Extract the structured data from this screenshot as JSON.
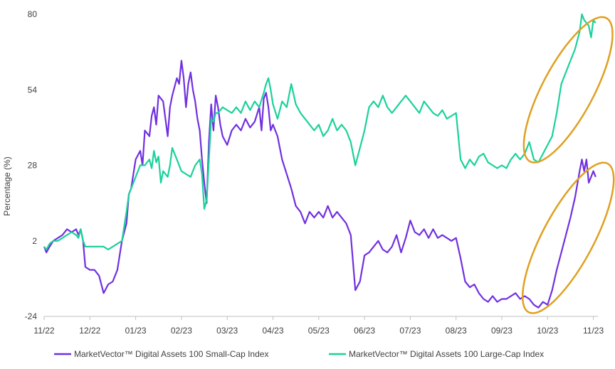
{
  "chart_data": {
    "type": "line",
    "title": "",
    "xlabel": "",
    "ylabel": "Percentage (%)",
    "ylim": [
      -24,
      80
    ],
    "yticks": [
      -24,
      2,
      28,
      54,
      80
    ],
    "xlim": [
      0,
      12.1
    ],
    "xticks": [
      {
        "x": 0,
        "label": "11/22"
      },
      {
        "x": 1,
        "label": "12/22"
      },
      {
        "x": 2,
        "label": "01/23"
      },
      {
        "x": 3,
        "label": "02/23"
      },
      {
        "x": 4,
        "label": "03/23"
      },
      {
        "x": 5,
        "label": "04/23"
      },
      {
        "x": 6,
        "label": "05/23"
      },
      {
        "x": 7,
        "label": "06/23"
      },
      {
        "x": 8,
        "label": "07/23"
      },
      {
        "x": 9,
        "label": "08/23"
      },
      {
        "x": 10,
        "label": "09/23"
      },
      {
        "x": 11,
        "label": "10/23"
      },
      {
        "x": 12,
        "label": "11/23"
      }
    ],
    "grid": false,
    "legend_position": "bottom",
    "series": [
      {
        "name": "MarketVector™ Digital Assets 100 Small-Cap Index",
        "color": "#7030E0",
        "points": [
          [
            0,
            0
          ],
          [
            0.05,
            -2
          ],
          [
            0.12,
            0
          ],
          [
            0.2,
            2
          ],
          [
            0.3,
            3
          ],
          [
            0.4,
            4
          ],
          [
            0.5,
            6
          ],
          [
            0.6,
            5
          ],
          [
            0.7,
            6
          ],
          [
            0.75,
            4
          ],
          [
            0.8,
            6
          ],
          [
            0.85,
            2
          ],
          [
            0.9,
            -7
          ],
          [
            1.0,
            -8
          ],
          [
            1.1,
            -8
          ],
          [
            1.2,
            -10
          ],
          [
            1.3,
            -16
          ],
          [
            1.4,
            -13
          ],
          [
            1.5,
            -12
          ],
          [
            1.6,
            -8
          ],
          [
            1.7,
            2
          ],
          [
            1.8,
            8
          ],
          [
            1.85,
            18
          ],
          [
            1.9,
            20
          ],
          [
            2.0,
            30
          ],
          [
            2.1,
            33
          ],
          [
            2.15,
            28
          ],
          [
            2.2,
            40
          ],
          [
            2.3,
            38
          ],
          [
            2.35,
            45
          ],
          [
            2.4,
            48
          ],
          [
            2.45,
            42
          ],
          [
            2.5,
            52
          ],
          [
            2.6,
            50
          ],
          [
            2.7,
            38
          ],
          [
            2.75,
            48
          ],
          [
            2.8,
            52
          ],
          [
            2.9,
            58
          ],
          [
            2.95,
            56
          ],
          [
            3.0,
            64
          ],
          [
            3.05,
            58
          ],
          [
            3.1,
            48
          ],
          [
            3.15,
            56
          ],
          [
            3.2,
            60
          ],
          [
            3.25,
            54
          ],
          [
            3.3,
            50
          ],
          [
            3.35,
            44
          ],
          [
            3.4,
            40
          ],
          [
            3.45,
            30
          ],
          [
            3.5,
            22
          ],
          [
            3.55,
            15
          ],
          [
            3.6,
            36
          ],
          [
            3.65,
            49
          ],
          [
            3.7,
            40
          ],
          [
            3.75,
            52
          ],
          [
            3.8,
            48
          ],
          [
            3.85,
            42
          ],
          [
            3.9,
            38
          ],
          [
            4.0,
            35
          ],
          [
            4.1,
            40
          ],
          [
            4.2,
            42
          ],
          [
            4.3,
            40
          ],
          [
            4.4,
            44
          ],
          [
            4.5,
            41
          ],
          [
            4.6,
            43
          ],
          [
            4.7,
            48
          ],
          [
            4.75,
            40
          ],
          [
            4.8,
            51
          ],
          [
            4.85,
            53
          ],
          [
            4.9,
            48
          ],
          [
            4.95,
            40
          ],
          [
            5.0,
            42
          ],
          [
            5.1,
            38
          ],
          [
            5.2,
            30
          ],
          [
            5.3,
            25
          ],
          [
            5.4,
            20
          ],
          [
            5.5,
            14
          ],
          [
            5.6,
            12
          ],
          [
            5.7,
            8
          ],
          [
            5.8,
            12
          ],
          [
            5.9,
            10
          ],
          [
            6.0,
            12
          ],
          [
            6.1,
            10
          ],
          [
            6.2,
            14
          ],
          [
            6.3,
            10
          ],
          [
            6.4,
            12
          ],
          [
            6.5,
            10
          ],
          [
            6.6,
            8
          ],
          [
            6.7,
            4
          ],
          [
            6.8,
            -15
          ],
          [
            6.9,
            -12
          ],
          [
            7.0,
            -3
          ],
          [
            7.1,
            -2
          ],
          [
            7.2,
            0
          ],
          [
            7.3,
            2
          ],
          [
            7.4,
            -1
          ],
          [
            7.5,
            -2
          ],
          [
            7.6,
            0
          ],
          [
            7.7,
            4
          ],
          [
            7.8,
            -2
          ],
          [
            7.9,
            3
          ],
          [
            8.0,
            9
          ],
          [
            8.1,
            5
          ],
          [
            8.2,
            4
          ],
          [
            8.3,
            6
          ],
          [
            8.4,
            3
          ],
          [
            8.5,
            6
          ],
          [
            8.6,
            3
          ],
          [
            8.7,
            4
          ],
          [
            8.8,
            3
          ],
          [
            8.9,
            2
          ],
          [
            9.0,
            3
          ],
          [
            9.1,
            -4
          ],
          [
            9.2,
            -12
          ],
          [
            9.3,
            -14
          ],
          [
            9.4,
            -13
          ],
          [
            9.5,
            -16
          ],
          [
            9.6,
            -18
          ],
          [
            9.7,
            -19
          ],
          [
            9.8,
            -17
          ],
          [
            9.9,
            -19
          ],
          [
            10.0,
            -18
          ],
          [
            10.1,
            -18
          ],
          [
            10.2,
            -17
          ],
          [
            10.3,
            -16
          ],
          [
            10.4,
            -18
          ],
          [
            10.5,
            -17
          ],
          [
            10.6,
            -18
          ],
          [
            10.7,
            -20
          ],
          [
            10.8,
            -21
          ],
          [
            10.9,
            -19
          ],
          [
            11.0,
            -20
          ],
          [
            11.1,
            -15
          ],
          [
            11.2,
            -8
          ],
          [
            11.3,
            -2
          ],
          [
            11.4,
            4
          ],
          [
            11.5,
            10
          ],
          [
            11.6,
            17
          ],
          [
            11.7,
            26
          ],
          [
            11.75,
            30
          ],
          [
            11.8,
            26
          ],
          [
            11.85,
            30
          ],
          [
            11.9,
            22
          ],
          [
            11.95,
            24
          ],
          [
            12.0,
            26
          ],
          [
            12.05,
            24
          ]
        ]
      },
      {
        "name": "MarketVector™ Digital Assets 100 Large-Cap Index",
        "color": "#1BD19A",
        "points": [
          [
            0,
            0
          ],
          [
            0.05,
            -1
          ],
          [
            0.12,
            1
          ],
          [
            0.2,
            2
          ],
          [
            0.3,
            2
          ],
          [
            0.4,
            3
          ],
          [
            0.5,
            4
          ],
          [
            0.6,
            5
          ],
          [
            0.7,
            4
          ],
          [
            0.75,
            3
          ],
          [
            0.8,
            6
          ],
          [
            0.85,
            2
          ],
          [
            0.9,
            0
          ],
          [
            1.0,
            0
          ],
          [
            1.1,
            0
          ],
          [
            1.2,
            0
          ],
          [
            1.3,
            0
          ],
          [
            1.4,
            -1
          ],
          [
            1.5,
            0
          ],
          [
            1.6,
            1
          ],
          [
            1.7,
            2
          ],
          [
            1.8,
            12
          ],
          [
            1.85,
            18
          ],
          [
            1.9,
            20
          ],
          [
            2.0,
            24
          ],
          [
            2.1,
            28
          ],
          [
            2.2,
            28
          ],
          [
            2.3,
            30
          ],
          [
            2.35,
            27
          ],
          [
            2.4,
            33
          ],
          [
            2.45,
            29
          ],
          [
            2.5,
            31
          ],
          [
            2.55,
            22
          ],
          [
            2.6,
            26
          ],
          [
            2.7,
            24
          ],
          [
            2.75,
            28
          ],
          [
            2.8,
            34
          ],
          [
            2.9,
            30
          ],
          [
            3.0,
            26
          ],
          [
            3.1,
            25
          ],
          [
            3.2,
            24
          ],
          [
            3.3,
            28
          ],
          [
            3.4,
            30
          ],
          [
            3.45,
            25
          ],
          [
            3.5,
            13
          ],
          [
            3.55,
            16
          ],
          [
            3.6,
            30
          ],
          [
            3.65,
            44
          ],
          [
            3.7,
            43
          ],
          [
            3.75,
            46
          ],
          [
            3.8,
            46
          ],
          [
            3.9,
            48
          ],
          [
            4.0,
            47
          ],
          [
            4.1,
            46
          ],
          [
            4.2,
            48
          ],
          [
            4.3,
            46
          ],
          [
            4.4,
            50
          ],
          [
            4.5,
            47
          ],
          [
            4.6,
            50
          ],
          [
            4.7,
            48
          ],
          [
            4.8,
            53
          ],
          [
            4.85,
            56
          ],
          [
            4.9,
            58
          ],
          [
            4.95,
            54
          ],
          [
            5.0,
            49
          ],
          [
            5.1,
            44
          ],
          [
            5.2,
            50
          ],
          [
            5.3,
            48
          ],
          [
            5.35,
            52
          ],
          [
            5.4,
            56
          ],
          [
            5.5,
            49
          ],
          [
            5.6,
            46
          ],
          [
            5.7,
            44
          ],
          [
            5.8,
            42
          ],
          [
            5.9,
            40
          ],
          [
            6.0,
            42
          ],
          [
            6.1,
            38
          ],
          [
            6.2,
            40
          ],
          [
            6.3,
            44
          ],
          [
            6.4,
            40
          ],
          [
            6.5,
            42
          ],
          [
            6.6,
            40
          ],
          [
            6.7,
            36
          ],
          [
            6.8,
            28
          ],
          [
            6.9,
            34
          ],
          [
            7.0,
            40
          ],
          [
            7.1,
            48
          ],
          [
            7.2,
            50
          ],
          [
            7.3,
            48
          ],
          [
            7.4,
            52
          ],
          [
            7.5,
            48
          ],
          [
            7.6,
            46
          ],
          [
            7.7,
            48
          ],
          [
            7.8,
            50
          ],
          [
            7.9,
            52
          ],
          [
            8.0,
            50
          ],
          [
            8.1,
            48
          ],
          [
            8.2,
            46
          ],
          [
            8.3,
            50
          ],
          [
            8.4,
            48
          ],
          [
            8.5,
            46
          ],
          [
            8.6,
            45
          ],
          [
            8.7,
            47
          ],
          [
            8.8,
            44
          ],
          [
            8.9,
            45
          ],
          [
            9.0,
            46
          ],
          [
            9.1,
            30
          ],
          [
            9.2,
            27
          ],
          [
            9.3,
            30
          ],
          [
            9.4,
            28
          ],
          [
            9.5,
            31
          ],
          [
            9.6,
            32
          ],
          [
            9.7,
            29
          ],
          [
            9.8,
            28
          ],
          [
            9.9,
            27
          ],
          [
            10.0,
            28
          ],
          [
            10.1,
            27
          ],
          [
            10.2,
            30
          ],
          [
            10.3,
            32
          ],
          [
            10.4,
            30
          ],
          [
            10.5,
            32
          ],
          [
            10.6,
            36
          ],
          [
            10.7,
            30
          ],
          [
            10.8,
            29
          ],
          [
            10.9,
            32
          ],
          [
            11.0,
            35
          ],
          [
            11.1,
            38
          ],
          [
            11.2,
            46
          ],
          [
            11.3,
            56
          ],
          [
            11.4,
            60
          ],
          [
            11.5,
            64
          ],
          [
            11.6,
            68
          ],
          [
            11.7,
            74
          ],
          [
            11.75,
            80
          ],
          [
            11.8,
            78
          ],
          [
            11.9,
            76
          ],
          [
            11.95,
            72
          ],
          [
            12.0,
            78
          ],
          [
            12.05,
            77
          ]
        ]
      }
    ],
    "annotations": [
      {
        "type": "ellipse",
        "color": "#E0A020",
        "x_range": [
          10.7,
          12.2
        ],
        "y_range": [
          28,
          80
        ],
        "description": "highlight"
      },
      {
        "type": "ellipse",
        "color": "#E0A020",
        "x_range": [
          10.7,
          12.2
        ],
        "y_range": [
          -24,
          30
        ],
        "description": "highlight"
      }
    ]
  }
}
